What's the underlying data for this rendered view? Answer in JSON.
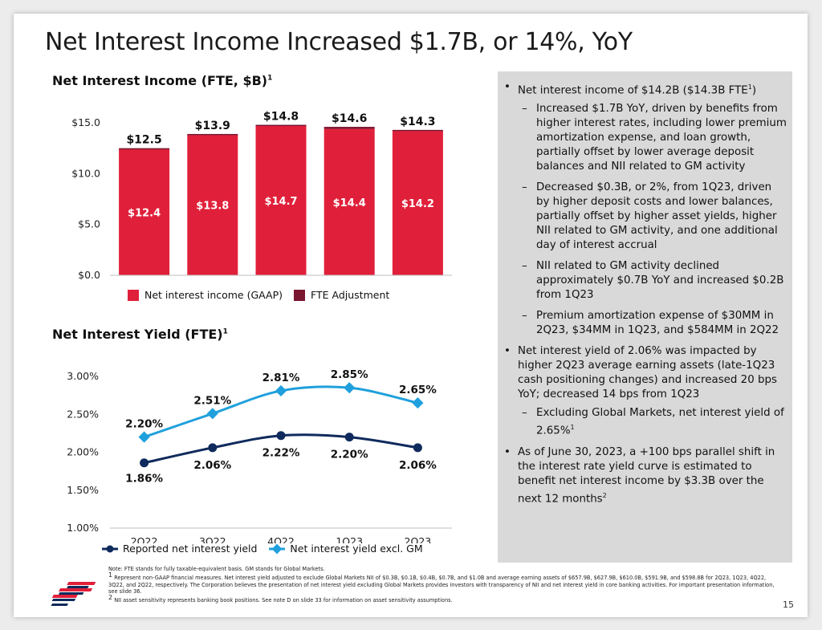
{
  "slide": {
    "title": "Net Interest Income Increased $1.7B, or 14%, YoY",
    "page_number": "15"
  },
  "nii_chart": {
    "title": "Net Interest Income (FTE, $B)",
    "title_sup": "1",
    "legend": [
      {
        "label": "Net interest income (GAAP)",
        "color": "#e0203a"
      },
      {
        "label": "FTE Adjustment",
        "color": "#7a1630"
      }
    ]
  },
  "nim_chart": {
    "title": "Net Interest Yield (FTE)",
    "title_sup": "1",
    "legend": [
      {
        "label": "Reported net interest yield",
        "color": "#0f2a5c"
      },
      {
        "label": "Net interest yield excl. GM",
        "color": "#1fa0dc"
      }
    ]
  },
  "chart_data": [
    {
      "type": "bar",
      "title": "Net Interest Income (FTE, $B)",
      "categories": [
        "2Q22",
        "3Q22",
        "4Q22",
        "1Q23",
        "2Q23"
      ],
      "series": [
        {
          "name": "Net interest income (GAAP)",
          "values": [
            12.4,
            13.8,
            14.7,
            14.4,
            14.2
          ],
          "labels": [
            "$12.4",
            "$13.8",
            "$14.7",
            "$14.4",
            "$14.2"
          ]
        },
        {
          "name": "FTE Adjustment",
          "values": [
            0.1,
            0.1,
            0.1,
            0.2,
            0.1
          ]
        }
      ],
      "totals": [
        12.5,
        13.9,
        14.8,
        14.6,
        14.3
      ],
      "total_labels": [
        "$12.5",
        "$13.9",
        "$14.8",
        "$14.6",
        "$14.3"
      ],
      "stacked": true,
      "ylim": [
        0,
        15
      ],
      "yticks": [
        "$0.0",
        "$5.0",
        "$10.0",
        "$15.0"
      ],
      "ytick_values": [
        0,
        5,
        10,
        15
      ],
      "legend_position": "bottom"
    },
    {
      "type": "line",
      "title": "Net Interest Yield (FTE)",
      "categories": [
        "2Q22",
        "3Q22",
        "4Q22",
        "1Q23",
        "2Q23"
      ],
      "series": [
        {
          "name": "Reported net interest yield",
          "values": [
            1.86,
            2.06,
            2.22,
            2.2,
            2.06
          ],
          "labels": [
            "1.86%",
            "2.06%",
            "2.22%",
            "2.20%",
            "2.06%"
          ]
        },
        {
          "name": "Net interest yield excl. GM",
          "values": [
            2.2,
            2.51,
            2.81,
            2.85,
            2.65
          ],
          "labels": [
            "2.20%",
            "2.51%",
            "2.81%",
            "2.85%",
            "2.65%"
          ]
        }
      ],
      "ylim": [
        1.0,
        3.0
      ],
      "yticks": [
        "1.00%",
        "1.50%",
        "2.00%",
        "2.50%",
        "3.00%"
      ],
      "ytick_values": [
        1.0,
        1.5,
        2.0,
        2.5,
        3.0
      ],
      "legend_position": "bottom"
    }
  ],
  "commentary": [
    {
      "text": "Net interest income of $14.2B ($14.3B FTE",
      "sup": "1",
      "tail": ")",
      "sub": [
        {
          "text": "Increased $1.7B YoY, driven by benefits from higher interest rates, including lower premium amortization expense, and loan growth, partially offset by lower average deposit balances and NII related to GM activity"
        },
        {
          "text": "Decreased $0.3B, or 2%, from 1Q23, driven by higher deposit costs and lower balances, partially offset by higher asset yields, higher NII related to GM activity, and one additional day of interest accrual"
        },
        {
          "text": "NII related to GM activity declined approximately $0.7B YoY and increased $0.2B from 1Q23"
        },
        {
          "text": "Premium amortization expense of $30MM in 2Q23, $34MM in 1Q23, and $584MM in 2Q22"
        }
      ]
    },
    {
      "text": "Net interest yield of 2.06% was impacted by higher 2Q23 average earning assets (late-1Q23 cash positioning changes) and increased 20 bps YoY; decreased 14 bps from 1Q23",
      "sup": "",
      "tail": "",
      "sub": [
        {
          "text": "Excluding Global Markets, net interest yield of 2.65%",
          "sup": "1"
        }
      ]
    },
    {
      "text": "As of June 30, 2023, a +100 bps parallel shift in the interest rate yield curve is estimated to benefit net interest income by $3.3B over the next 12 months",
      "sup": "2",
      "tail": "",
      "sub": []
    }
  ],
  "footnotes": {
    "note": "Note: FTE stands for fully taxable-equivalent basis. GM stands for Global Markets.",
    "fn1_mark": "1",
    "fn1": "Represent non-GAAP financial measures. Net interest yield adjusted to exclude Global Markets NII of $0.3B, $0.1B, $0.4B, $0.7B, and $1.0B and average earning assets of $657.9B, $627.9B, $610.0B, $591.9B, and $598.8B for 2Q23, 1Q23, 4Q22, 3Q22, and 2Q22, respectively. The Corporation believes the presentation of net interest yield excluding Global Markets provides investors with transparency of NII and net interest yield in core banking activities. For important presentation information, see slide 36.",
    "fn2_mark": "2",
    "fn2": "NII asset sensitivity represents banking book positions. See note D on slide 33 for information on asset sensitivity assumptions."
  },
  "logo": {
    "colors": [
      "#e0203a",
      "#0f2a5c"
    ]
  }
}
